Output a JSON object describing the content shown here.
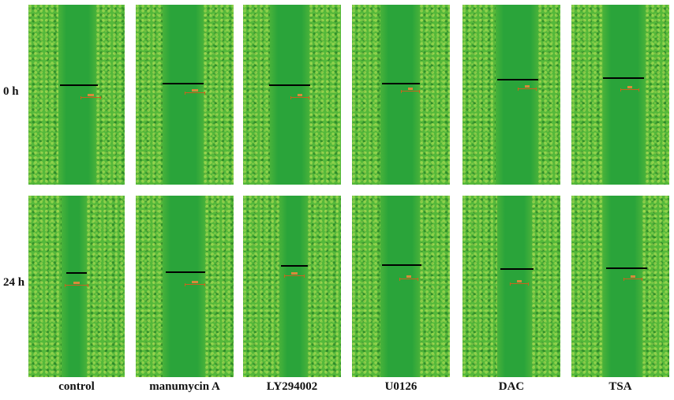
{
  "row_labels": [
    "0 h",
    "24 h"
  ],
  "column_labels": [
    "control",
    "manumycin A",
    "LY294002",
    "U0126",
    "DAC",
    "TSA"
  ],
  "colors": {
    "gap_green": "#2aa43a",
    "cell_green": "#55b83a",
    "measurement_line": "#000000",
    "scale_bar": "#c8641e"
  }
}
